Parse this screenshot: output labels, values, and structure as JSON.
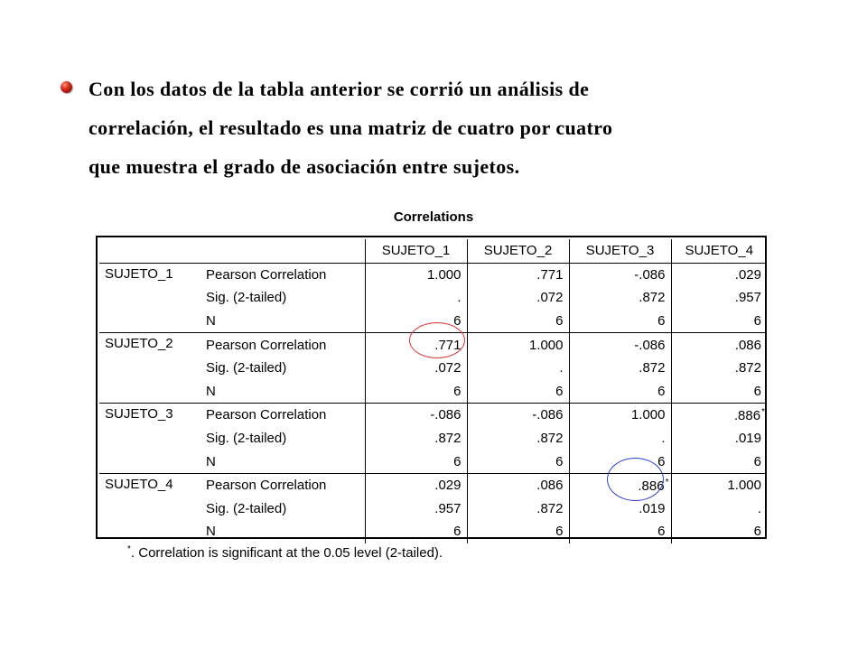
{
  "intro": {
    "lines": [
      "Con los datos de la tabla anterior se corrió un análisis de",
      "correlación, el resultado es una matriz de cuatro por cuatro",
      "que muestra el grado de asociación entre sujetos."
    ]
  },
  "table": {
    "title": "Correlations",
    "headers": [
      "SUJETO_1",
      "SUJETO_2",
      "SUJETO_3",
      "SUJETO_4"
    ],
    "groups": [
      {
        "variable": "SUJETO_1",
        "rows": [
          {
            "stat": "Pearson Correlation",
            "values": [
              "1.000",
              ".771",
              "-.086",
              ".029"
            ]
          },
          {
            "stat": "Sig. (2-tailed)",
            "values": [
              ".",
              ".072",
              ".872",
              ".957"
            ]
          },
          {
            "stat": "N",
            "values": [
              "6",
              "6",
              "6",
              "6"
            ]
          }
        ]
      },
      {
        "variable": "SUJETO_2",
        "rows": [
          {
            "stat": "Pearson Correlation",
            "values": [
              ".771",
              "1.000",
              "-.086",
              ".086"
            ]
          },
          {
            "stat": "Sig. (2-tailed)",
            "values": [
              ".072",
              ".",
              ".872",
              ".872"
            ]
          },
          {
            "stat": "N",
            "values": [
              "6",
              "6",
              "6",
              "6"
            ]
          }
        ]
      },
      {
        "variable": "SUJETO_3",
        "rows": [
          {
            "stat": "Pearson Correlation",
            "values": [
              "-.086",
              "-.086",
              "1.000",
              ".886"
            ]
          },
          {
            "stat": "Sig. (2-tailed)",
            "values": [
              ".872",
              ".872",
              ".",
              ".019"
            ]
          },
          {
            "stat": "N",
            "values": [
              "6",
              "6",
              "6",
              "6"
            ]
          }
        ]
      },
      {
        "variable": "SUJETO_4",
        "rows": [
          {
            "stat": "Pearson Correlation",
            "values": [
              ".029",
              ".086",
              ".886",
              "1.000"
            ]
          },
          {
            "stat": "Sig. (2-tailed)",
            "values": [
              ".957",
              ".872",
              ".019",
              "."
            ]
          },
          {
            "stat": "N",
            "values": [
              "6",
              "6",
              "6",
              "6"
            ]
          }
        ]
      }
    ],
    "significance_marker": "*",
    "footnote_marker": "*",
    "footnote_text": ". Correlation is significant at the 0.05 level (2-tailed)."
  },
  "colors": {
    "bullet": "#e0301e",
    "highlight_red": "#e03030",
    "highlight_blue": "#2b3fd6"
  }
}
